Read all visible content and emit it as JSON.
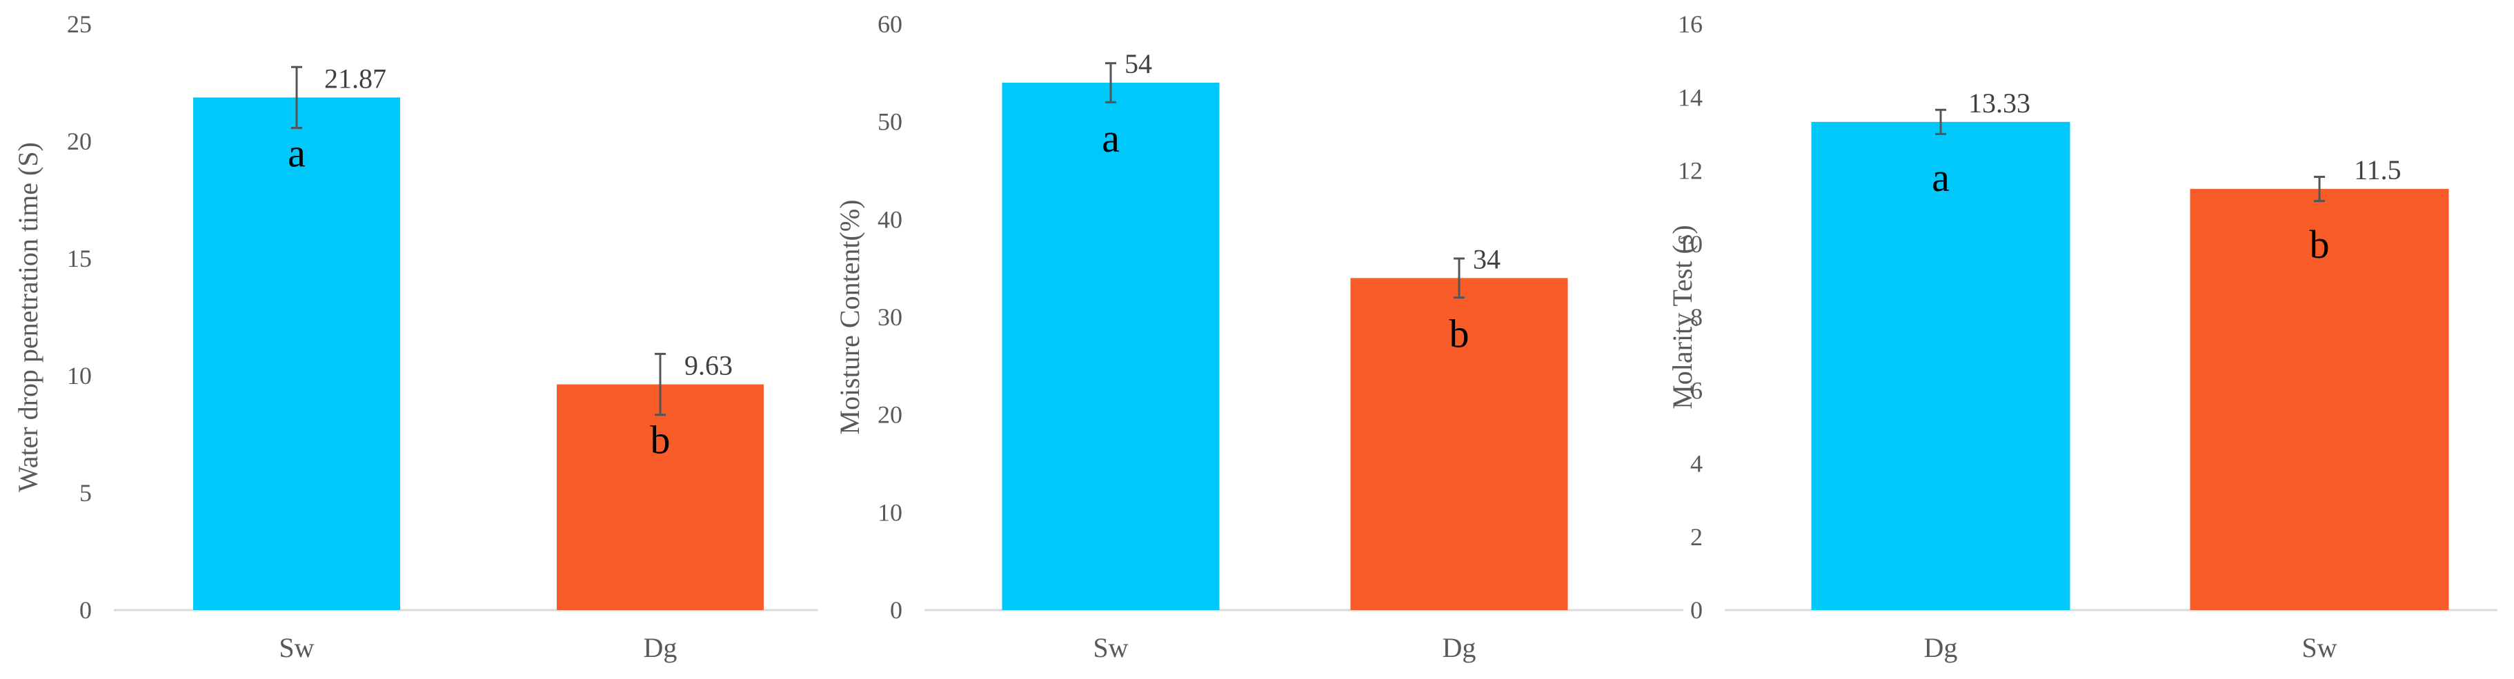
{
  "colors": {
    "blue": "#00c8fa",
    "orange": "#f85c28",
    "axis": "#d9d9d9",
    "error": "#555555"
  },
  "chart_data": [
    {
      "type": "bar",
      "ylabel": "Water drop penetration time (S)",
      "ylim": [
        0,
        25
      ],
      "yticks": [
        0,
        5,
        10,
        15,
        20,
        25
      ],
      "grid": false,
      "categories": [
        "Sw",
        "Dg"
      ],
      "values": [
        21.87,
        9.63
      ],
      "error": [
        1.3,
        1.3
      ],
      "data_labels": [
        "21.87",
        "9.63"
      ],
      "letters": [
        "a",
        "b"
      ],
      "bar_colors": [
        "#00c8fa",
        "#f85c28"
      ]
    },
    {
      "type": "bar",
      "ylabel": "Moisture Content(%)",
      "ylim": [
        0,
        60
      ],
      "yticks": [
        0,
        10,
        20,
        30,
        40,
        50,
        60
      ],
      "grid": false,
      "categories": [
        "Sw",
        "Dg"
      ],
      "values": [
        54,
        34
      ],
      "error": [
        2,
        2
      ],
      "data_labels": [
        "54",
        "34"
      ],
      "letters": [
        "a",
        "b"
      ],
      "bar_colors": [
        "#00c8fa",
        "#f85c28"
      ]
    },
    {
      "type": "bar",
      "ylabel": "Molarity Test (s)",
      "ylim": [
        0,
        16
      ],
      "yticks": [
        0,
        2,
        4,
        6,
        8,
        10,
        12,
        14,
        16
      ],
      "grid": false,
      "categories": [
        "Dg",
        "Sw"
      ],
      "values": [
        13.33,
        11.5
      ],
      "error": [
        0.33,
        0.33
      ],
      "data_labels": [
        "13.33",
        "11.5"
      ],
      "letters": [
        "a",
        "b"
      ],
      "bar_colors": [
        "#00c8fa",
        "#f85c28"
      ]
    }
  ]
}
